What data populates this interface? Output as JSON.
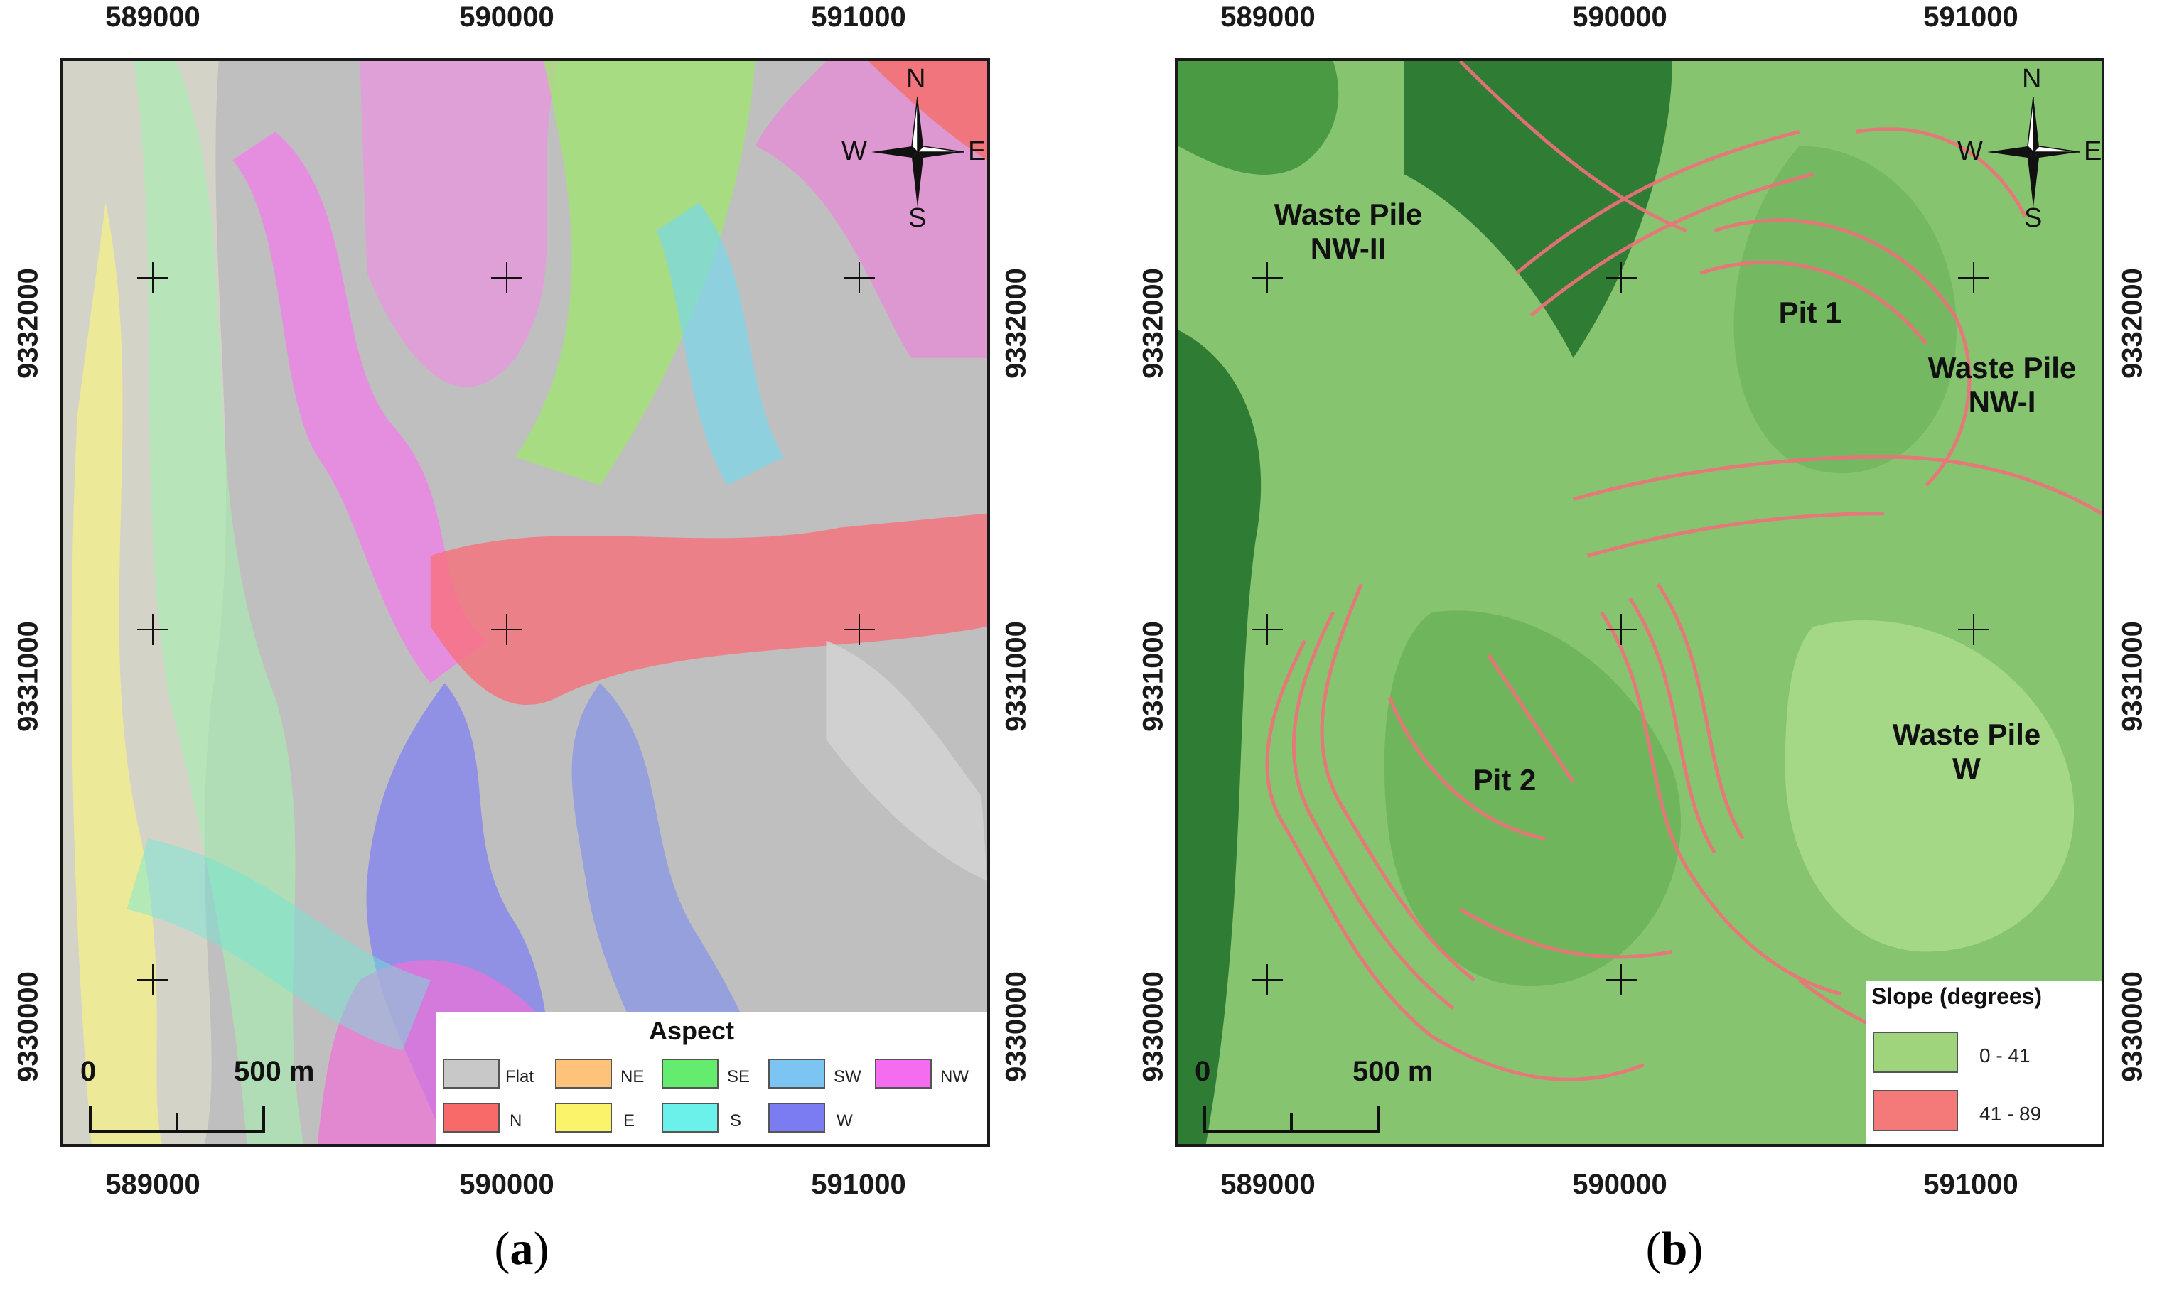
{
  "panels": [
    {
      "caption_letter": "a",
      "x_ticks": [
        "589000",
        "590000",
        "591000"
      ],
      "y_ticks": [
        "9332000",
        "9331000",
        "9330000"
      ],
      "compass": {
        "n": "N",
        "s": "S",
        "e": "E",
        "w": "W"
      },
      "scale": {
        "zero": "0",
        "distance": "500 m"
      },
      "legend": {
        "title": "Aspect",
        "items": [
          {
            "label": "Flat",
            "color": "#c8c8c8"
          },
          {
            "label": "NE",
            "color": "#ffc27a"
          },
          {
            "label": "SE",
            "color": "#63ec6e"
          },
          {
            "label": "SW",
            "color": "#7cc4f2"
          },
          {
            "label": "NW",
            "color": "#f46cf0"
          },
          {
            "label": "N",
            "color": "#f86a6a"
          },
          {
            "label": "E",
            "color": "#fbf46a"
          },
          {
            "label": "S",
            "color": "#6cf0ea"
          },
          {
            "label": "W",
            "color": "#7c7cf2"
          }
        ]
      }
    },
    {
      "caption_letter": "b",
      "x_ticks": [
        "589000",
        "590000",
        "591000"
      ],
      "y_ticks": [
        "9332000",
        "9331000",
        "9330000"
      ],
      "compass": {
        "n": "N",
        "s": "S",
        "e": "E",
        "w": "W"
      },
      "scale": {
        "zero": "0",
        "distance": "500 m"
      },
      "labels": {
        "waste_nw2": "Waste Pile NW-II",
        "pit1": "Pit 1",
        "waste_nw1": "Waste Pile NW-I",
        "pit2": "Pit 2",
        "waste_w": "Waste Pile W"
      },
      "legend": {
        "title": "Slope (degrees)",
        "items": [
          {
            "label": "0 - 41",
            "color": "#9fd47c"
          },
          {
            "label": "41 - 89",
            "color": "#f47a7a"
          }
        ]
      }
    }
  ]
}
